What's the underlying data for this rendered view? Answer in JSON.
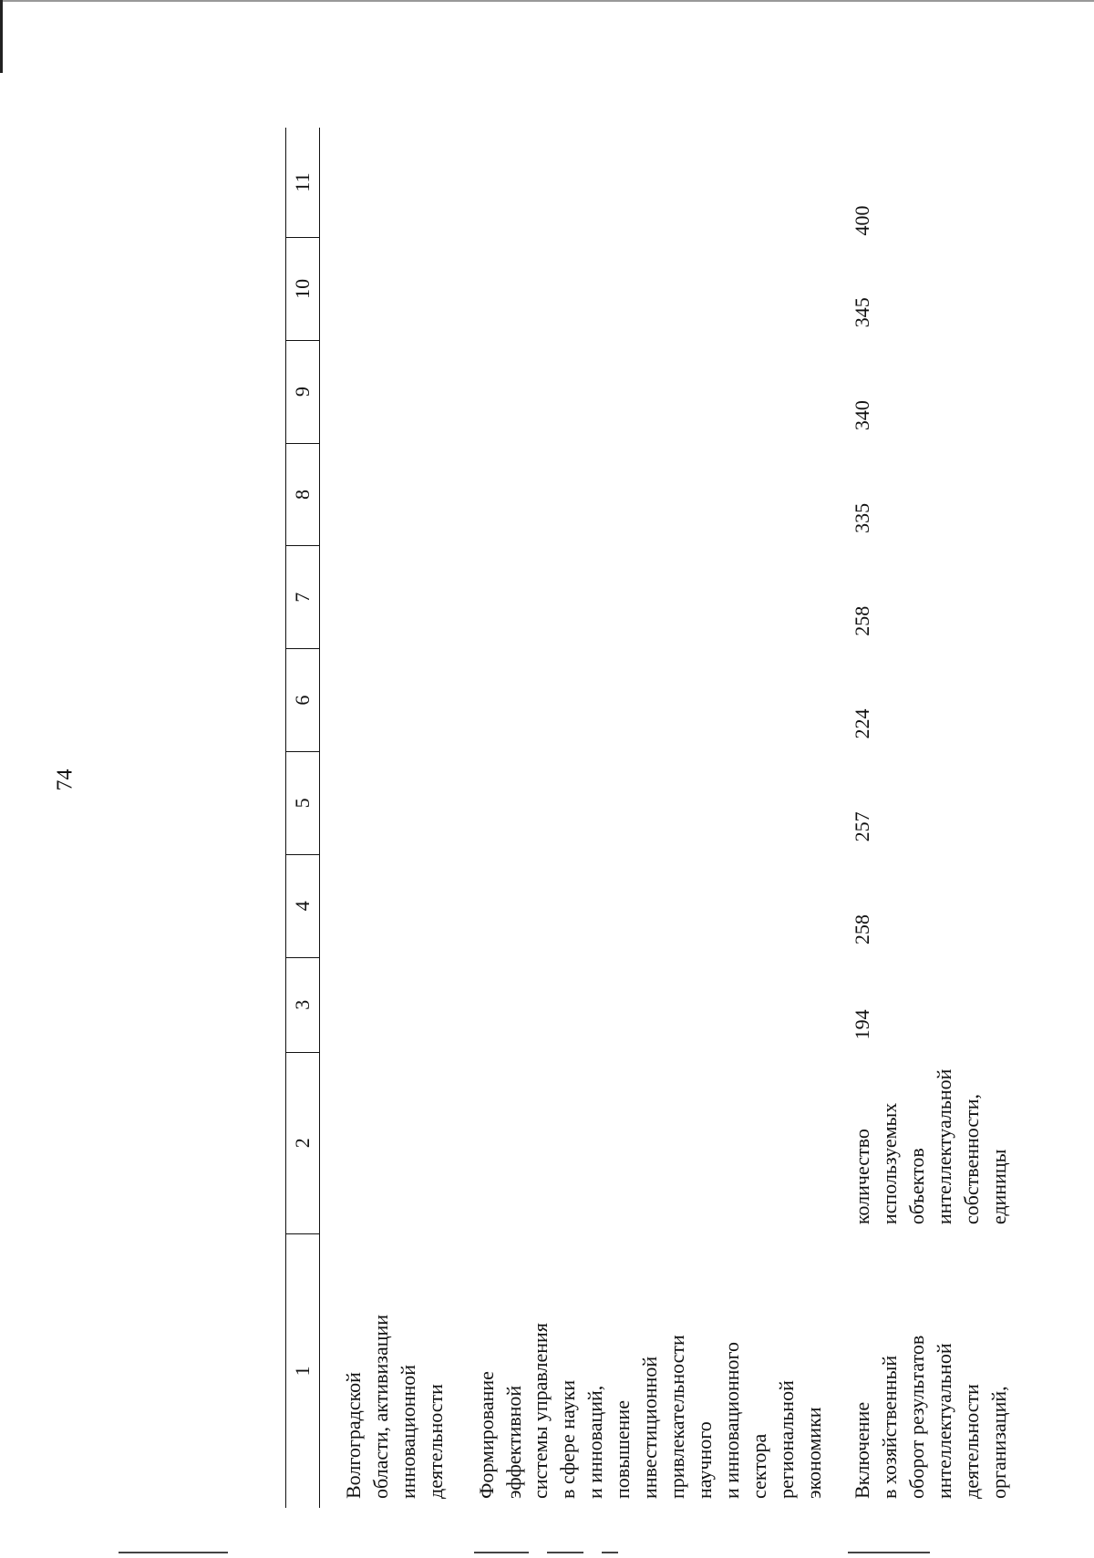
{
  "page_number": "74",
  "table": {
    "header": [
      "1",
      "2",
      "3",
      "4",
      "5",
      "6",
      "7",
      "8",
      "9",
      "10",
      "11"
    ],
    "rows": [
      {
        "col1": "Волгоградской\nобласти, активизации\nинновационной\nдеятельности",
        "col2": "",
        "values": [
          "",
          "",
          "",
          "",
          "",
          "",
          "",
          "",
          ""
        ]
      },
      {
        "col1": "Формирование\nэффективной\nсистемы управления\nв сфере науки\nи инноваций,\nповышение\nинвестиционной\nпривлекательности\nнаучного\nи инновационного\nсектора\nрегиональной\nэкономики",
        "col2": "",
        "values": [
          "",
          "",
          "",
          "",
          "",
          "",
          "",
          "",
          ""
        ]
      },
      {
        "col1": "Включение\nв хозяйственный\nоборот результатов\nинтеллектуальной\nдеятельности\nорганизаций,",
        "col2": "количество\nиспользуемых\nобъектов\nинтеллектуальной\nсобственности,\nединицы",
        "values": [
          "194",
          "258",
          "257",
          "224",
          "258",
          "335",
          "340",
          "345",
          "400"
        ]
      }
    ]
  }
}
